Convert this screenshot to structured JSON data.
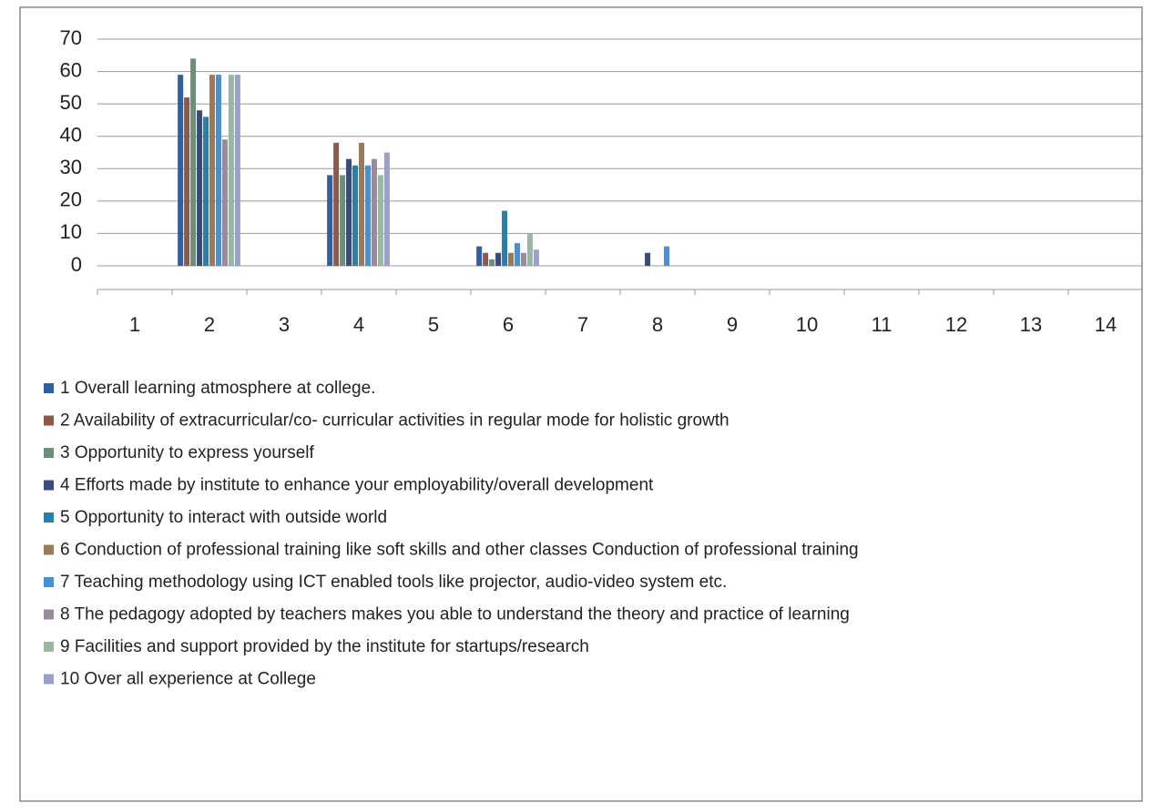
{
  "chart_data": {
    "type": "bar",
    "categories": [
      "1",
      "2",
      "3",
      "4",
      "5",
      "6",
      "7",
      "8",
      "9",
      "10",
      "11",
      "12",
      "13",
      "14"
    ],
    "series": [
      {
        "name": "1 Overall learning atmosphere at college.",
        "color": "#2e5fa3",
        "values": [
          null,
          59,
          null,
          28,
          null,
          6,
          null,
          null,
          null,
          null,
          null,
          null,
          null,
          null
        ]
      },
      {
        "name": "2 Availability of extracurricular/co- curricular activities in regular mode for holistic growth",
        "color": "#8b5a4a",
        "values": [
          null,
          52,
          null,
          38,
          null,
          4,
          null,
          null,
          null,
          null,
          null,
          null,
          null,
          null
        ]
      },
      {
        "name": "3 Opportunity to express yourself",
        "color": "#6b8f7a",
        "values": [
          null,
          64,
          null,
          28,
          null,
          2,
          null,
          null,
          null,
          null,
          null,
          null,
          null,
          null
        ]
      },
      {
        "name": "4 Efforts made by institute to enhance your  employability/overall development",
        "color": "#3a4a7a",
        "values": [
          null,
          48,
          null,
          33,
          null,
          4,
          null,
          4,
          null,
          null,
          null,
          null,
          null,
          null
        ]
      },
      {
        "name": "5 Opportunity to interact with outside world",
        "color": "#2a7fa8",
        "values": [
          null,
          46,
          null,
          31,
          null,
          17,
          null,
          null,
          null,
          null,
          null,
          null,
          null,
          null
        ]
      },
      {
        "name": "6 Conduction of professional training like soft skills and other classes Conduction of professional training",
        "color": "#9a7a5a",
        "values": [
          null,
          59,
          null,
          38,
          null,
          4,
          null,
          null,
          null,
          null,
          null,
          null,
          null,
          null
        ]
      },
      {
        "name": "7 Teaching methodology using ICT enabled tools like projector, audio-video system etc.",
        "color": "#4a90d0",
        "values": [
          null,
          59,
          null,
          31,
          null,
          7,
          null,
          6,
          null,
          null,
          null,
          null,
          null,
          null
        ]
      },
      {
        "name": "8 The pedagogy adopted by teachers makes you able to understand the theory and practice of learning",
        "color": "#9a8aa0",
        "values": [
          null,
          39,
          null,
          33,
          null,
          4,
          null,
          null,
          null,
          null,
          null,
          null,
          null,
          null
        ]
      },
      {
        "name": "9 Facilities  and  support  provided  by  the institute for startups/research",
        "color": "#9ab8a0",
        "values": [
          null,
          59,
          null,
          28,
          null,
          10,
          null,
          null,
          null,
          null,
          null,
          null,
          null,
          null
        ]
      },
      {
        "name": "10 Over all experience at College",
        "color": "#9aa0c8",
        "values": [
          null,
          59,
          null,
          35,
          null,
          5,
          null,
          null,
          null,
          null,
          null,
          null,
          null,
          null
        ]
      }
    ],
    "ylim": [
      0,
      70
    ],
    "yticks": [
      0,
      10,
      20,
      30,
      40,
      50,
      60,
      70
    ],
    "grid": true
  }
}
